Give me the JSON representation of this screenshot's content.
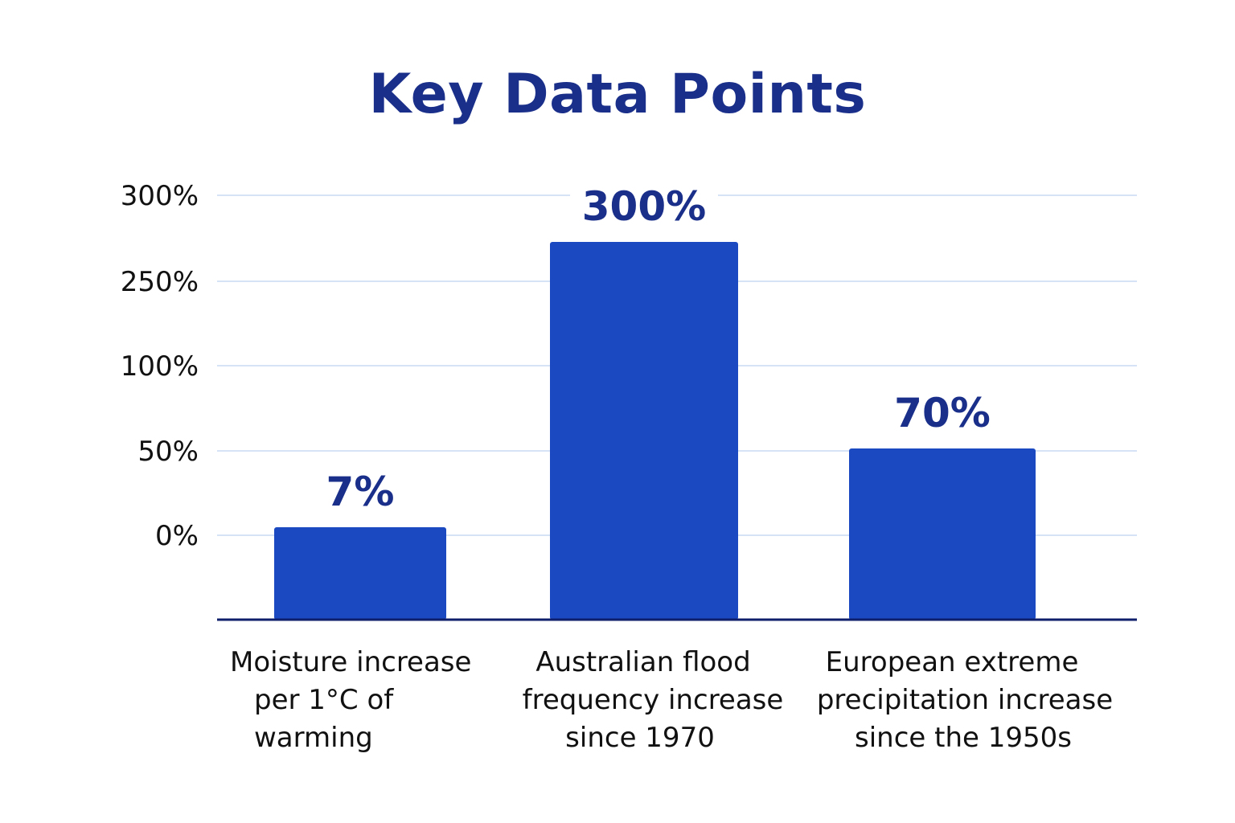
{
  "chart_data": {
    "type": "bar",
    "title": "Key Data Points",
    "categories": [
      [
        "Moisture increase",
        "per 1°C of",
        "warming"
      ],
      [
        "Australian flood",
        "frequency increase",
        "since 1970"
      ],
      [
        "European extreme",
        "precipitation increase",
        "since the 1950s"
      ]
    ],
    "values": [
      7,
      300,
      70
    ],
    "value_labels": [
      "7%",
      "300%",
      "70%"
    ],
    "y_tick_labels": [
      "300%",
      "250%",
      "100%",
      "50%",
      "0%"
    ],
    "grid": true,
    "colors": {
      "bar": "#1a49c2",
      "title": "#1a2f8a",
      "grid": "#d6e2f5",
      "axis": "#0f1f6b"
    }
  }
}
